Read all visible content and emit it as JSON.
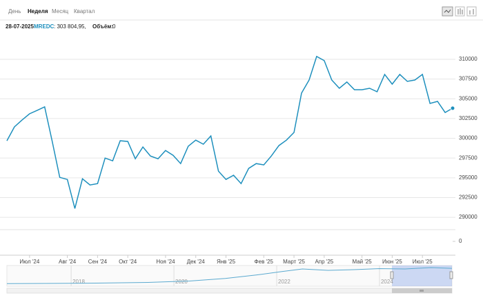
{
  "tabs": [
    "День",
    "Неделя",
    "Месяц",
    "Квартал"
  ],
  "selected_tab": 1,
  "info": {
    "date": "28-07-2025",
    "ticker": "MREDC",
    "quote": ": 303 804,95,",
    "volume_label": "Объём:",
    "volume": 0
  },
  "chart_data": {
    "type": "line",
    "categories": [
      null,
      null,
      null,
      "Июл '24",
      null,
      null,
      null,
      null,
      "Авг '24",
      null,
      null,
      null,
      "Сен '24",
      null,
      null,
      null,
      "Окт '24",
      null,
      null,
      null,
      null,
      "Ноя '24",
      null,
      null,
      null,
      "Дек '24",
      null,
      null,
      null,
      "Янв '25",
      null,
      null,
      null,
      null,
      "Фев '25",
      null,
      null,
      null,
      "Март '25",
      null,
      null,
      null,
      "Апр '25",
      null,
      null,
      null,
      null,
      "Май '25",
      null,
      null,
      null,
      "Июн '25",
      null,
      null,
      null,
      "Июл '25",
      null,
      null,
      null,
      null
    ],
    "series": [
      {
        "name": "MREDC",
        "color": "#1d8fbd",
        "values": [
          299690,
          301440,
          302310,
          303100,
          303530,
          303970,
          299600,
          295050,
          294790,
          291120,
          294880,
          294090,
          294270,
          297500,
          297150,
          299690,
          299600,
          297410,
          298900,
          297760,
          297410,
          298460,
          297850,
          296800,
          298990,
          299770,
          299250,
          300300,
          295840,
          294790,
          295320,
          294270,
          296190,
          296800,
          296630,
          297760,
          299080,
          299770,
          300740,
          305720,
          307380,
          310350,
          309830,
          307380,
          306330,
          307120,
          306150,
          306150,
          306330,
          305890,
          308080,
          306850,
          308080,
          307200,
          307380,
          308080,
          304410,
          304670,
          303270,
          303804.95
        ]
      }
    ],
    "ylim": [
      288700,
      312700
    ],
    "yticks": [
      290000,
      292500,
      295000,
      297500,
      300000,
      302500,
      305000,
      307500,
      310000
    ],
    "grid": true,
    "volume_yticks": [
      0
    ],
    "navigator": {
      "xlim": [
        2016.75,
        2025.41
      ],
      "xticks": [
        2018,
        2020,
        2022,
        2024
      ],
      "ylim": [
        200000,
        320000
      ],
      "x": [
        2016.75,
        2017.5,
        2018.5,
        2019.5,
        2020.3,
        2021,
        2021.6,
        2022.1,
        2022.5,
        2023,
        2023.5,
        2024,
        2024.5,
        2025,
        2025.41
      ],
      "values": [
        215000,
        216000,
        218000,
        222000,
        230000,
        245000,
        265000,
        285000,
        300000,
        292000,
        296000,
        302000,
        300000,
        308000,
        303800
      ]
    }
  }
}
